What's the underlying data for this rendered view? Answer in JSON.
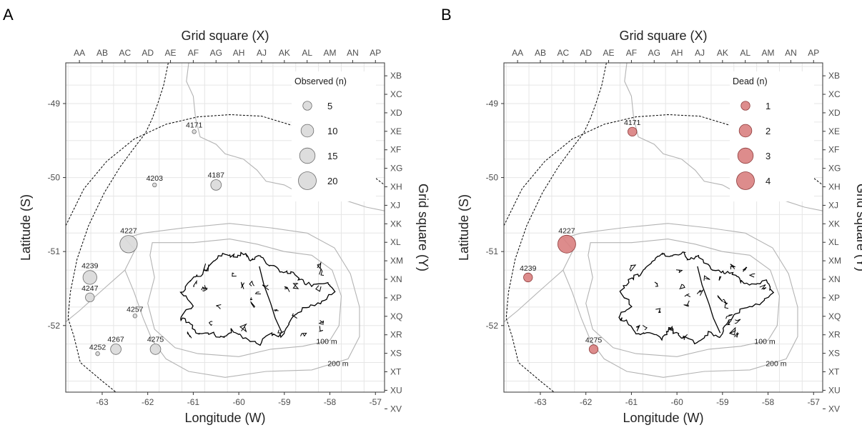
{
  "chart_data": [
    {
      "type": "scatter",
      "panel_label": "A",
      "title": "",
      "xlabel": "Longitude (W)",
      "ylabel": "Latitude (S)",
      "top_axis_label": "Grid square (X)",
      "right_axis_label": "Grid square (Y)",
      "xlim": [
        -63.8,
        -56.8
      ],
      "ylim": [
        -52.9,
        -48.45
      ],
      "x_ticks": [
        -63,
        -62,
        -61,
        -60,
        -59,
        -58,
        -57
      ],
      "y_ticks": [
        -49,
        -50,
        -51,
        -52
      ],
      "x_tick_labels": [
        "-63",
        "-62",
        "-61",
        "-60",
        "-59",
        "-58",
        "-57"
      ],
      "y_tick_labels": [
        "-49",
        "-50",
        "-51",
        "-52"
      ],
      "top_ticks": [
        "AA",
        "AB",
        "AC",
        "AD",
        "AE",
        "AF",
        "AG",
        "AH",
        "AJ",
        "AK",
        "AL",
        "AM",
        "AN",
        "AP"
      ],
      "right_ticks": [
        "XB",
        "XC",
        "XD",
        "XE",
        "XF",
        "XG",
        "XH",
        "XJ",
        "XK",
        "XL",
        "XM",
        "XN",
        "XP",
        "XQ",
        "XR",
        "XS",
        "XT",
        "XU",
        "XV"
      ],
      "grid": true,
      "point_color": "#d9d9d9",
      "point_stroke": "#6b6b6b",
      "legend": {
        "title": "Observed (n)",
        "position": "top-right",
        "entries": [
          {
            "label": "5",
            "value": 5
          },
          {
            "label": "10",
            "value": 10
          },
          {
            "label": "15",
            "value": 15
          },
          {
            "label": "20",
            "value": 20
          }
        ]
      },
      "points": [
        {
          "id": "4171",
          "lon": -60.98,
          "lat": -49.38,
          "value": 1
        },
        {
          "id": "4203",
          "lon": -61.85,
          "lat": -50.1,
          "value": 1
        },
        {
          "id": "4187",
          "lon": -60.5,
          "lat": -50.1,
          "value": 7
        },
        {
          "id": "4227",
          "lon": -62.42,
          "lat": -50.9,
          "value": 19
        },
        {
          "id": "4239",
          "lon": -63.27,
          "lat": -51.35,
          "value": 12
        },
        {
          "id": "4247",
          "lon": -63.27,
          "lat": -51.62,
          "value": 5
        },
        {
          "id": "4257",
          "lon": -62.28,
          "lat": -51.87,
          "value": 1
        },
        {
          "id": "4252",
          "lon": -63.1,
          "lat": -52.38,
          "value": 1
        },
        {
          "id": "4267",
          "lon": -62.7,
          "lat": -52.32,
          "value": 7
        },
        {
          "id": "4275",
          "lon": -61.83,
          "lat": -52.32,
          "value": 7
        }
      ],
      "contour_labels": [
        "100 m",
        "200 m"
      ]
    },
    {
      "type": "scatter",
      "panel_label": "B",
      "title": "",
      "xlabel": "Longitude (W)",
      "ylabel": "Latitude (S)",
      "top_axis_label": "Grid square (X)",
      "right_axis_label": "Grid square (Y)",
      "xlim": [
        -63.8,
        -56.8
      ],
      "ylim": [
        -52.9,
        -48.45
      ],
      "x_ticks": [
        -63,
        -62,
        -61,
        -60,
        -59,
        -58,
        -57
      ],
      "y_ticks": [
        -49,
        -50,
        -51,
        -52
      ],
      "x_tick_labels": [
        "-63",
        "-62",
        "-61",
        "-60",
        "-59",
        "-58",
        "-57"
      ],
      "y_tick_labels": [
        "-49",
        "-50",
        "-51",
        "-52"
      ],
      "top_ticks": [
        "AA",
        "AB",
        "AC",
        "AD",
        "AE",
        "AF",
        "AG",
        "AH",
        "AJ",
        "AK",
        "AL",
        "AM",
        "AN",
        "AP"
      ],
      "right_ticks": [
        "XB",
        "XC",
        "XD",
        "XE",
        "XF",
        "XG",
        "XH",
        "XJ",
        "XK",
        "XL",
        "XM",
        "XN",
        "XP",
        "XQ",
        "XR",
        "XS",
        "XT",
        "XU",
        "XV"
      ],
      "grid": true,
      "point_color": "#d98080",
      "point_stroke": "#8c3a3a",
      "legend": {
        "title": "Dead (n)",
        "position": "top-right",
        "entries": [
          {
            "label": "1",
            "value": 1
          },
          {
            "label": "2",
            "value": 2
          },
          {
            "label": "3",
            "value": 3
          },
          {
            "label": "4",
            "value": 4
          }
        ]
      },
      "points": [
        {
          "id": "4171",
          "lon": -60.98,
          "lat": -49.38,
          "value": 1
        },
        {
          "id": "4227",
          "lon": -62.42,
          "lat": -50.9,
          "value": 4
        },
        {
          "id": "4239",
          "lon": -63.27,
          "lat": -51.35,
          "value": 1
        },
        {
          "id": "4275",
          "lon": -61.83,
          "lat": -52.32,
          "value": 1
        }
      ],
      "contour_labels": [
        "100 m",
        "200 m"
      ]
    }
  ]
}
